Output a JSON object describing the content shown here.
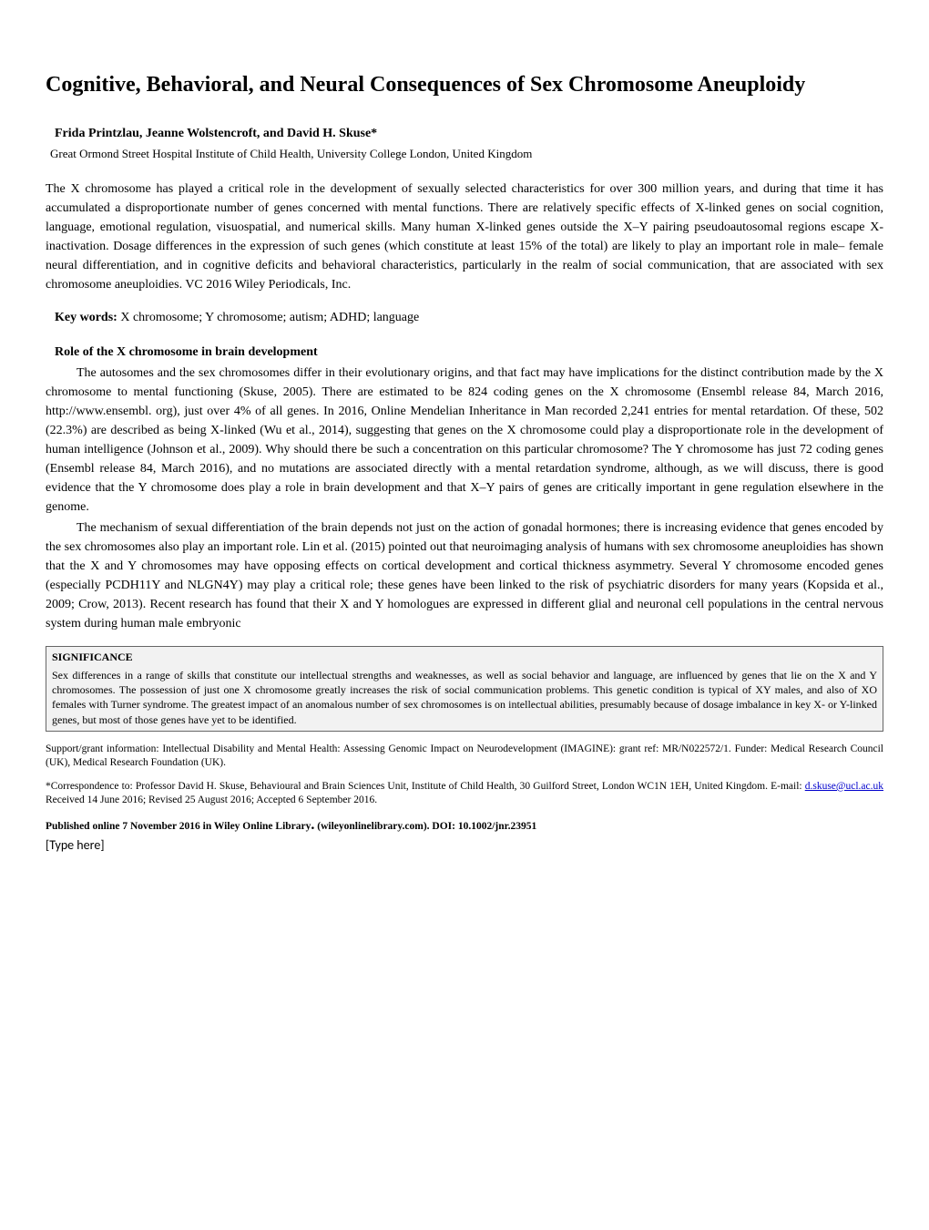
{
  "title": "Cognitive, Behavioral, and Neural Consequences of Sex Chromosome Aneuploidy",
  "authors": "Frida Printzlau, Jeanne Wolstencroft, and David H. Skuse*",
  "affiliation": "Great Ormond Street Hospital Institute of Child Health, University College London, United Kingdom",
  "abstract": "The X chromosome has played a critical role in the development of sexually selected characteristics for over 300 million years, and during that time it has accumulated a disproportionate number of genes concerned with mental functions. There are relatively specific effects of X-linked genes on social cognition, language, emotional regulation, visuospatial, and numerical skills. Many human X-linked genes outside the X–Y pairing pseudoautosomal regions escape X-inactivation. Dosage differences in the expression of such genes (which constitute at least 15% of the total) are likely to play an important role in male– female neural differentiation, and in cognitive deficits and behavioral characteristics, particularly in the realm of social communication, that are associated with sex chromosome aneuploidies. VC 2016 Wiley Periodicals, Inc.",
  "keywords_label": "Key words:",
  "keywords_text": " X chromosome; Y chromosome; autism; ADHD; language",
  "section_heading": "Role of the X chromosome in brain development",
  "paragraph1": "The autosomes and the sex chromosomes differ in their evolutionary origins, and that fact may have implications for the distinct contribution made by the X chromosome to mental functioning (Skuse, 2005). There are estimated to be 824 coding genes on the X chromosome (Ensembl release 84, March 2016, http://www.ensembl. org), just over 4% of all genes. In 2016, Online Mendelian Inheritance in Man recorded 2,241 entries for mental retardation. Of these, 502 (22.3%) are described as being X-linked (Wu et al., 2014), suggesting that genes on the X chromosome could play a disproportionate role in the development of human intelligence (Johnson et al., 2009). Why should there be such a concentration on this particular chromosome? The Y chromosome has just 72 coding genes (Ensembl release 84, March 2016), and no mutations are associated directly with a mental retardation syndrome, although, as we will discuss, there is good evidence that the Y chromosome does play a role in brain development and that X–Y pairs of genes are critically important in gene regulation elsewhere in the genome.",
  "paragraph2": "The mechanism of sexual differentiation of the brain depends not just on the action of gonadal hormones; there is increasing evidence that genes encoded by the sex chromosomes also play an important role. Lin et al. (2015) pointed out that neuroimaging analysis of humans with sex chromosome aneuploidies has shown that the X and Y chromosomes may have opposing effects on cortical development and cortical thickness asymmetry. Several Y chromosome encoded genes (especially PCDH11Y and NLGN4Y) may play a critical role; these genes have been linked to the risk of psychiatric disorders for many years (Kopsida et al., 2009; Crow, 2013). Recent research has found that their X and Y homologues are expressed in different glial and neuronal cell populations in the central nervous system during human male embryonic",
  "significance_heading": "SIGNIFICANCE",
  "significance_text": "Sex differences in a range of skills that constitute our intellectual strengths and weaknesses, as well as social behavior and language, are influenced by genes that lie on the X and Y chromosomes. The possession of just one X chromosome greatly increases the risk of social communication problems. This genetic condition is typical of XY males, and also of XO females with Turner syndrome. The greatest impact of an anomalous number of sex chromosomes is on intellectual abilities, presumably because of dosage imbalance in key X- or Y-linked genes, but most of those genes have yet to be identified.",
  "support_text": "Support/grant information: Intellectual Disability and Mental Health: Assessing Genomic Impact on Neurodevelopment (IMAGINE): grant ref: MR/N022572/1. Funder: Medical Research Council (UK), Medical Research Foundation (UK).",
  "correspondence_prefix": "*Correspondence to: Professor David H. Skuse, Behavioural and Brain Sciences Unit, Institute of Child Health, 30 Guilford Street, London WC1N 1EH, United Kingdom. E-mail: ",
  "correspondence_email": "d.skuse@ucl.ac.uk",
  "correspondence_suffix": " Received 14 June 2016; Revised 25 August 2016; Accepted 6 September 2016.",
  "published_bold1": "Published online 7 November 2016 in Wiley Online Library",
  "published_bold2": " (wileyonlinelibrary.com). DOI: 10.1002/jnr.23951",
  "type_here": "[Type here]"
}
